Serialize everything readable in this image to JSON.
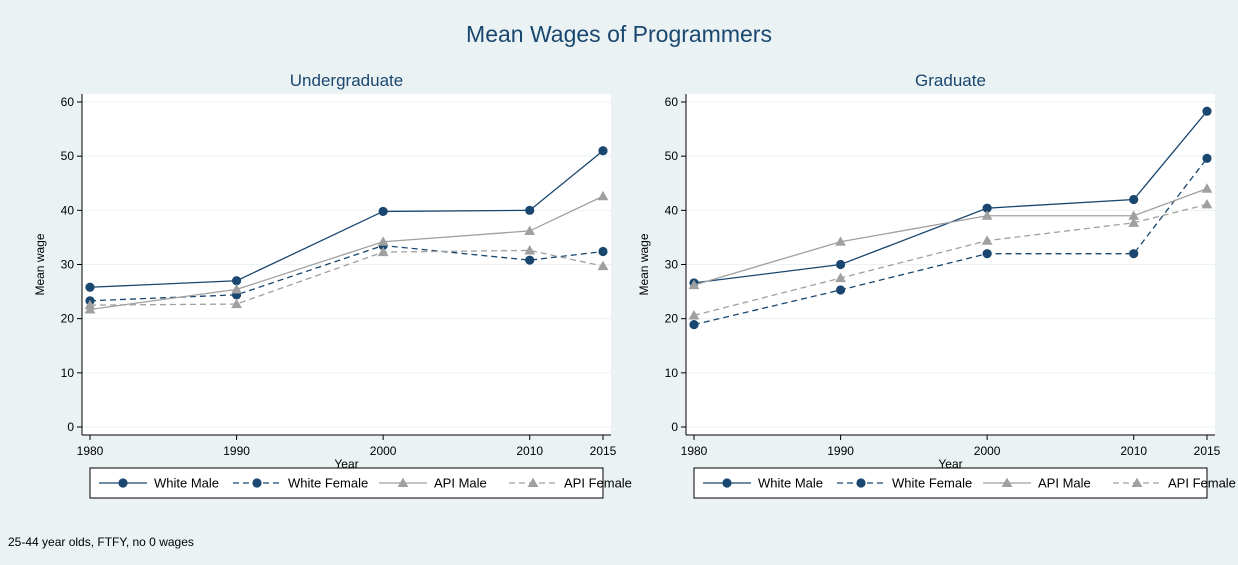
{
  "figure": {
    "title": "Mean Wages of Programmers",
    "note": "25-44 year olds, FTFY, no 0 wages",
    "background": "#eaf2f3",
    "plot_background": "#ffffff",
    "text_color": "#1a476f"
  },
  "chart_data": [
    {
      "type": "line",
      "title": "Undergraduate",
      "xlabel": "Year",
      "ylabel": "Mean wage",
      "x": [
        1980,
        1990,
        2000,
        2010,
        2015
      ],
      "xticks": [
        1980,
        1990,
        2000,
        2010,
        2015
      ],
      "yticks": [
        0,
        10,
        20,
        30,
        40,
        50,
        60
      ],
      "ylim": [
        0,
        60
      ],
      "grid": "horizontal",
      "legend_position": "bottom",
      "series": [
        {
          "name": "White Male",
          "values": [
            25.8,
            27.0,
            39.8,
            40.0,
            51.0
          ],
          "color": "#1a476f",
          "dash": "solid",
          "marker": "circle"
        },
        {
          "name": "White Female",
          "values": [
            23.3,
            24.4,
            33.5,
            30.8,
            32.4
          ],
          "color": "#1a476f",
          "dash": "dashed",
          "marker": "circle"
        },
        {
          "name": "API Male",
          "values": [
            21.7,
            25.4,
            34.2,
            36.2,
            42.6
          ],
          "color": "#a0a0a0",
          "dash": "solid",
          "marker": "triangle"
        },
        {
          "name": "API Female",
          "values": [
            22.5,
            22.7,
            32.3,
            32.6,
            29.7
          ],
          "color": "#a0a0a0",
          "dash": "dashed",
          "marker": "triangle"
        }
      ]
    },
    {
      "type": "line",
      "title": "Graduate",
      "xlabel": "Year",
      "ylabel": "Mean wage",
      "x": [
        1980,
        1990,
        2000,
        2010,
        2015
      ],
      "xticks": [
        1980,
        1990,
        2000,
        2010,
        2015
      ],
      "yticks": [
        0,
        10,
        20,
        30,
        40,
        50,
        60
      ],
      "ylim": [
        0,
        60
      ],
      "grid": "horizontal",
      "legend_position": "bottom",
      "series": [
        {
          "name": "White Male",
          "values": [
            26.6,
            30.0,
            40.4,
            42.0,
            58.3
          ],
          "color": "#1a476f",
          "dash": "solid",
          "marker": "circle"
        },
        {
          "name": "White Female",
          "values": [
            18.9,
            25.3,
            32.0,
            32.0,
            49.6
          ],
          "color": "#1a476f",
          "dash": "dashed",
          "marker": "circle"
        },
        {
          "name": "API Male",
          "values": [
            26.2,
            34.2,
            39.0,
            39.0,
            44.0
          ],
          "color": "#a0a0a0",
          "dash": "solid",
          "marker": "triangle"
        },
        {
          "name": "API Female",
          "values": [
            20.6,
            27.5,
            34.4,
            37.7,
            41.1
          ],
          "color": "#a0a0a0",
          "dash": "dashed",
          "marker": "triangle"
        }
      ]
    }
  ]
}
